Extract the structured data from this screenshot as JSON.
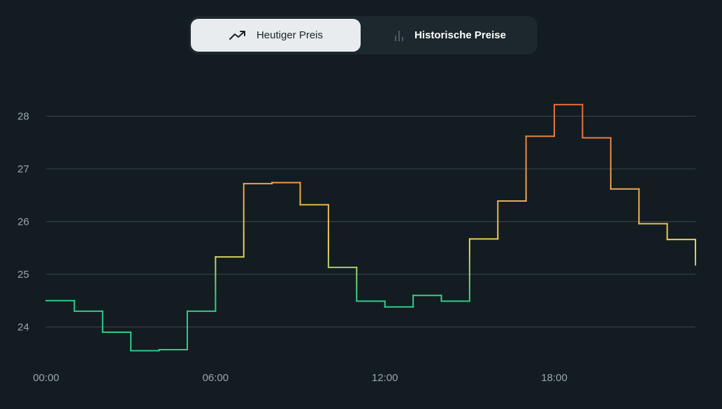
{
  "toggle": {
    "today_label": "Heutiger Preis",
    "today_icon": "trending-up-icon",
    "historical_label": "Historische Preise",
    "historical_icon": "bar-chart-icon"
  },
  "chart_data": {
    "type": "line",
    "step": true,
    "title": "",
    "xlabel": "",
    "ylabel": "",
    "x_ticks": [
      "00:00",
      "06:00",
      "12:00",
      "18:00"
    ],
    "y_ticks": [
      24,
      25,
      26,
      27,
      28
    ],
    "ylim": [
      23.4,
      28.6
    ],
    "grid": true,
    "colors": {
      "low": "#2ecc8a",
      "mid": "#f0cf5a",
      "high": "#e8693a"
    },
    "series": [
      {
        "x": [
          "00:00",
          "01:00",
          "02:00",
          "03:00",
          "04:00",
          "05:00",
          "06:00",
          "07:00",
          "08:00",
          "09:00",
          "10:00",
          "11:00",
          "12:00",
          "13:00",
          "14:00",
          "15:00",
          "16:00",
          "17:00",
          "18:00",
          "19:00",
          "20:00",
          "21:00",
          "22:00",
          "23:00"
        ],
        "values": [
          24.5,
          24.3,
          23.9,
          23.55,
          23.57,
          24.3,
          25.33,
          26.72,
          26.74,
          26.32,
          25.13,
          24.49,
          24.38,
          24.6,
          24.49,
          25.67,
          26.39,
          27.62,
          28.22,
          27.59,
          26.62,
          25.96,
          25.66,
          25.18
        ]
      }
    ]
  }
}
